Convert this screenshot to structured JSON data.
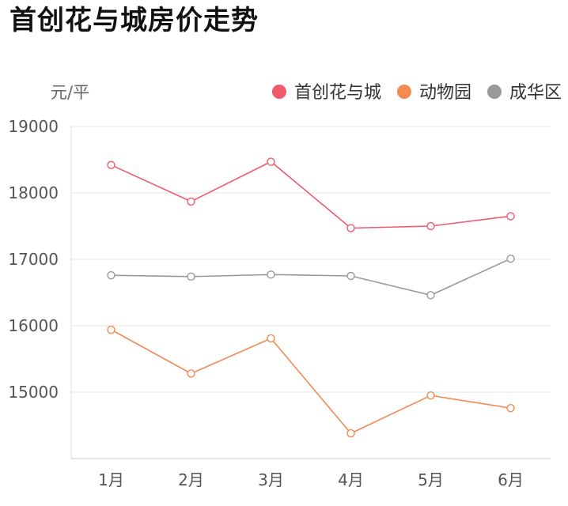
{
  "chart_data": {
    "type": "line",
    "title": "首创花与城房价走势",
    "xlabel": "",
    "ylabel": "元/平",
    "categories": [
      "1月",
      "2月",
      "3月",
      "4月",
      "5月",
      "6月"
    ],
    "yticks": [
      "19000",
      "18000",
      "17000",
      "16000",
      "15000"
    ],
    "ylim": [
      14000,
      19000
    ],
    "grid": true,
    "legend_position": "top-right",
    "series": [
      {
        "name": "首创花与城",
        "color": "#ef5a6f",
        "values": [
          18420,
          17870,
          18470,
          17470,
          17500,
          17650
        ]
      },
      {
        "name": "动物园",
        "color": "#f28a52",
        "values": [
          15940,
          15280,
          15810,
          14380,
          14950,
          14760
        ]
      },
      {
        "name": "成华区",
        "color": "#999999",
        "values": [
          16760,
          16740,
          16770,
          16750,
          16460,
          17010
        ]
      }
    ]
  }
}
